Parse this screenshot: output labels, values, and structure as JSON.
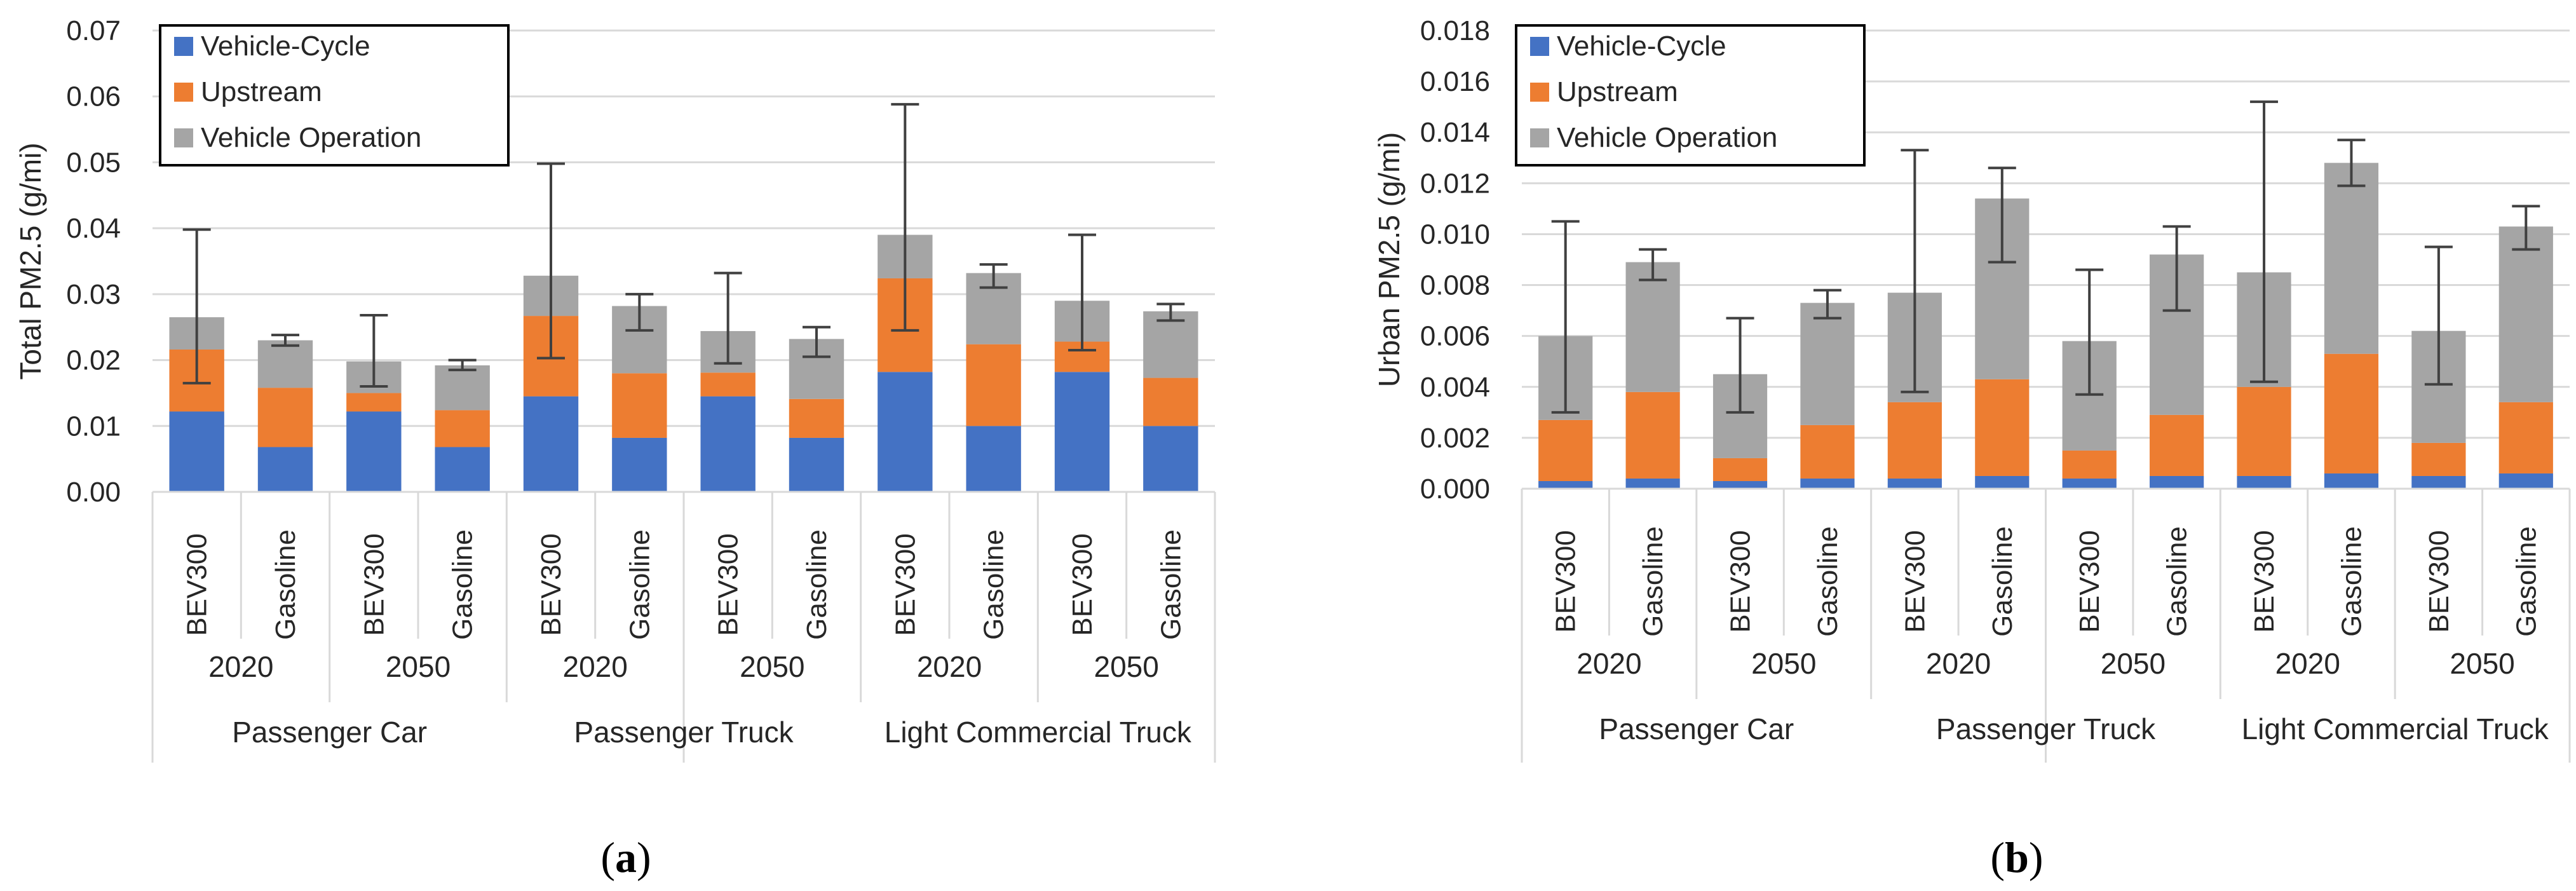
{
  "chart_data": [
    {
      "type": "bar",
      "stacked": true,
      "panel_label": "a",
      "ylabel": "Total PM2.5 (g/mi)",
      "xlabel": "",
      "ylim": [
        0,
        0.07
      ],
      "ytick_step": 0.01,
      "ytick_decimals": 2,
      "grid": true,
      "legend_position": "top-left",
      "categories": [
        "BEV300",
        "Gasoline",
        "BEV300",
        "Gasoline",
        "BEV300",
        "Gasoline",
        "BEV300",
        "Gasoline",
        "BEV300",
        "Gasoline",
        "BEV300",
        "Gasoline"
      ],
      "year_groups": [
        "2020",
        "2050",
        "2020",
        "2050",
        "2020",
        "2050"
      ],
      "vehicle_groups": [
        "Passenger Car",
        "Passenger Truck",
        "Light Commercial Truck"
      ],
      "series": [
        {
          "name": "Vehicle-Cycle",
          "color": "#4472C4",
          "values": [
            0.0122,
            0.0068,
            0.0122,
            0.0068,
            0.0145,
            0.0082,
            0.0145,
            0.0082,
            0.0182,
            0.01,
            0.0182,
            0.01
          ]
        },
        {
          "name": "Upstream",
          "color": "#ED7D31",
          "values": [
            0.0094,
            0.009,
            0.0028,
            0.0056,
            0.0122,
            0.0098,
            0.0036,
            0.0059,
            0.0142,
            0.0124,
            0.0046,
            0.0073
          ]
        },
        {
          "name": "Vehicle Operation",
          "color": "#A5A5A5",
          "values": [
            0.0049,
            0.0072,
            0.0048,
            0.0068,
            0.0061,
            0.0102,
            0.0063,
            0.0091,
            0.0066,
            0.0108,
            0.0062,
            0.0101
          ]
        }
      ],
      "error_bars": [
        {
          "low": 0.0165,
          "high": 0.0398
        },
        {
          "low": 0.0222,
          "high": 0.0238
        },
        {
          "low": 0.016,
          "high": 0.0268
        },
        {
          "low": 0.0185,
          "high": 0.02
        },
        {
          "low": 0.0203,
          "high": 0.0498
        },
        {
          "low": 0.0245,
          "high": 0.03
        },
        {
          "low": 0.0195,
          "high": 0.0332
        },
        {
          "low": 0.0205,
          "high": 0.025
        },
        {
          "low": 0.0245,
          "high": 0.0588
        },
        {
          "low": 0.031,
          "high": 0.0345
        },
        {
          "low": 0.0215,
          "high": 0.039
        },
        {
          "low": 0.026,
          "high": 0.0285
        }
      ]
    },
    {
      "type": "bar",
      "stacked": true,
      "panel_label": "b",
      "ylabel": "Urban PM2.5 (g/mi)",
      "xlabel": "",
      "ylim": [
        0,
        0.018
      ],
      "ytick_step": 0.002,
      "ytick_decimals": 3,
      "grid": true,
      "legend_position": "top-left",
      "categories": [
        "BEV300",
        "Gasoline",
        "BEV300",
        "Gasoline",
        "BEV300",
        "Gasoline",
        "BEV300",
        "Gasoline",
        "BEV300",
        "Gasoline",
        "BEV300",
        "Gasoline"
      ],
      "year_groups": [
        "2020",
        "2050",
        "2020",
        "2050",
        "2020",
        "2050"
      ],
      "vehicle_groups": [
        "Passenger Car",
        "Passenger Truck",
        "Light Commercial Truck"
      ],
      "series": [
        {
          "name": "Vehicle-Cycle",
          "color": "#4472C4",
          "values": [
            0.0003,
            0.0004,
            0.0003,
            0.0004,
            0.0004,
            0.0005,
            0.0004,
            0.0005,
            0.0005,
            0.0006,
            0.0005,
            0.0006
          ]
        },
        {
          "name": "Upstream",
          "color": "#ED7D31",
          "values": [
            0.0024,
            0.0034,
            0.0009,
            0.0021,
            0.003,
            0.0038,
            0.0011,
            0.0024,
            0.0035,
            0.0047,
            0.0013,
            0.0028
          ]
        },
        {
          "name": "Vehicle Operation",
          "color": "#A5A5A5",
          "values": [
            0.0033,
            0.0051,
            0.0033,
            0.0048,
            0.0043,
            0.0071,
            0.0043,
            0.0063,
            0.0045,
            0.0075,
            0.0044,
            0.0069
          ]
        }
      ],
      "error_bars": [
        {
          "low": 0.003,
          "high": 0.0105
        },
        {
          "low": 0.0082,
          "high": 0.0094
        },
        {
          "low": 0.003,
          "high": 0.0067
        },
        {
          "low": 0.0067,
          "high": 0.0078
        },
        {
          "low": 0.0038,
          "high": 0.0133
        },
        {
          "low": 0.0089,
          "high": 0.0126
        },
        {
          "low": 0.0037,
          "high": 0.0086
        },
        {
          "low": 0.007,
          "high": 0.0103
        },
        {
          "low": 0.0042,
          "high": 0.0152
        },
        {
          "low": 0.0119,
          "high": 0.0137
        },
        {
          "low": 0.0041,
          "high": 0.0095
        },
        {
          "low": 0.0094,
          "high": 0.0111
        }
      ]
    }
  ]
}
